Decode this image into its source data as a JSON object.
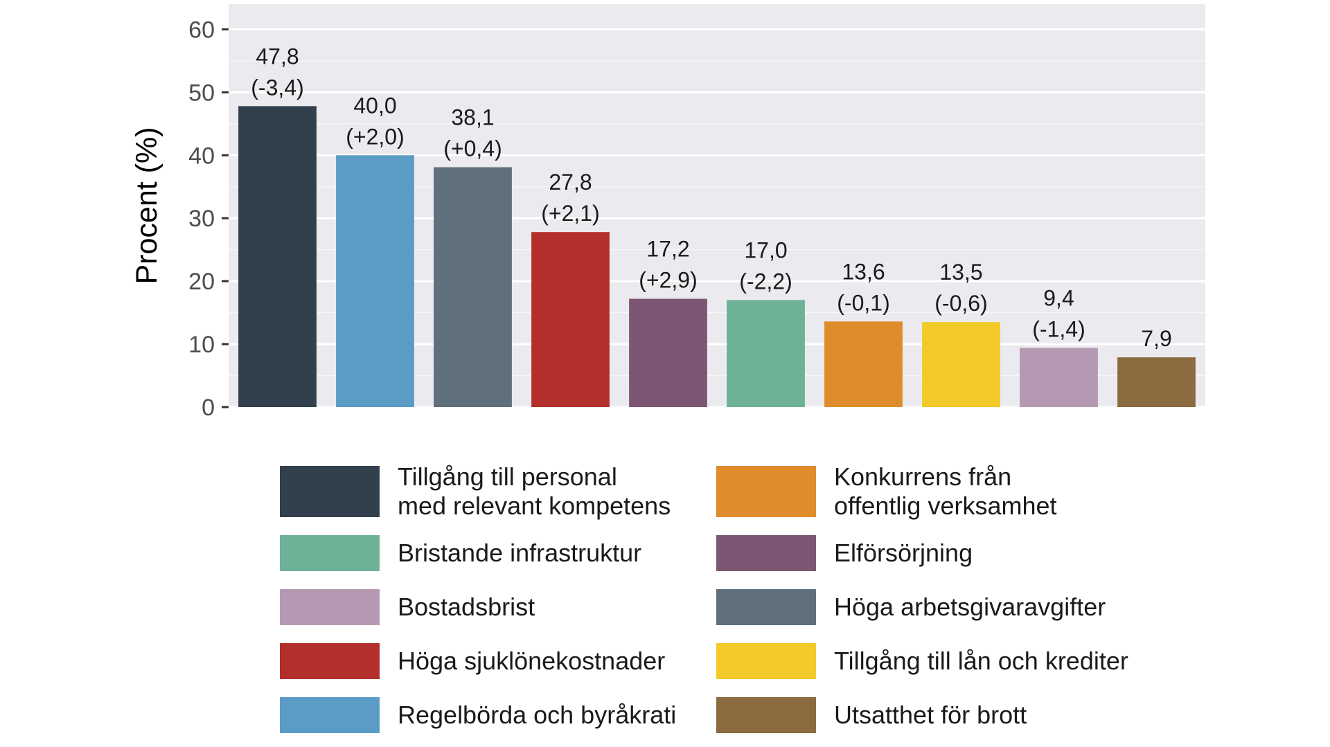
{
  "chart_data": {
    "type": "bar",
    "ylabel": "Procent (%)",
    "ylim": [
      0,
      64
    ],
    "yticks": [
      0,
      10,
      20,
      30,
      40,
      50,
      60
    ],
    "grid": true,
    "legend_position": "bottom",
    "bars": [
      {
        "category": "Tillgång till personal med relevant kompetens",
        "value": 47.8,
        "label": "47,8",
        "change": "(-3,4)",
        "color": "#323F4C"
      },
      {
        "category": "Regelbörda och byråkrati",
        "value": 40.0,
        "label": "40,0",
        "change": "(+2,0)",
        "color": "#5B9CC7"
      },
      {
        "category": "Höga arbetsgivaravgifter",
        "value": 38.1,
        "label": "38,1",
        "change": "(+0,4)",
        "color": "#5F6F7C"
      },
      {
        "category": "Höga sjuklönekostnader",
        "value": 27.8,
        "label": "27,8",
        "change": "(+2,1)",
        "color": "#B22F2B"
      },
      {
        "category": "Elförsörjning",
        "value": 17.2,
        "label": "17,2",
        "change": "(+2,9)",
        "color": "#7C5672"
      },
      {
        "category": "Bristande infrastruktur",
        "value": 17.0,
        "label": "17,0",
        "change": "(-2,2)",
        "color": "#6DB196"
      },
      {
        "category": "Konkurrens från offentlig verksamhet",
        "value": 13.6,
        "label": "13,6",
        "change": "(-0,1)",
        "color": "#DF8D2C"
      },
      {
        "category": "Tillgång till lån och krediter",
        "value": 13.5,
        "label": "13,5",
        "change": "(-0,6)",
        "color": "#F2CB2A"
      },
      {
        "category": "Bostadsbrist",
        "value": 9.4,
        "label": "9,4",
        "change": "(-1,4)",
        "color": "#B599B2"
      },
      {
        "category": "Utsatthet för brott",
        "value": 7.9,
        "label": "7,9",
        "change": "",
        "color": "#8C6B40"
      }
    ]
  },
  "legend": {
    "items": [
      {
        "label": "Tillgång till personal\nmed relevant kompetens",
        "color": "#323F4C"
      },
      {
        "label": "Konkurrens från\noffentlig verksamhet",
        "color": "#DF8D2C"
      },
      {
        "label": "Bristande infrastruktur",
        "color": "#6DB196"
      },
      {
        "label": "Elförsörjning",
        "color": "#7C5672"
      },
      {
        "label": "Bostadsbrist",
        "color": "#B599B2"
      },
      {
        "label": "Höga arbetsgivaravgifter",
        "color": "#5F6F7C"
      },
      {
        "label": "Höga sjuklönekostnader",
        "color": "#B22F2B"
      },
      {
        "label": "Tillgång till lån och krediter",
        "color": "#F2CB2A"
      },
      {
        "label": "Regelbörda och byråkrati",
        "color": "#5B9CC7"
      },
      {
        "label": "Utsatthet för brott",
        "color": "#8C6B40"
      }
    ]
  }
}
